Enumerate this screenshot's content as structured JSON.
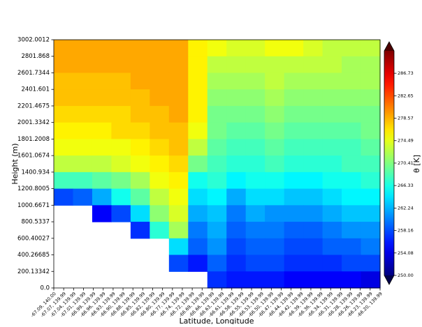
{
  "chart_data": {
    "type": "contour",
    "xlabel": "Latitude, Longitude",
    "ylabel": "Height (m)",
    "colorbar_label": "θ [K]",
    "categories": [
      "-67.09, 140.00",
      "-67.07, 139.99",
      "-67.04, 139.99",
      "-67.01, 139.99",
      "-66.99, 139.99",
      "-66.96, 139.99",
      "-66.93, 139.99",
      "-66.90, 139.99",
      "-66.88, 139.99",
      "-66.85, 139.99",
      "-66.82, 139.99",
      "-66.80, 139.99",
      "-66.77, 139.99",
      "-66.74, 139.99",
      "-66.72, 139.99",
      "-66.69, 139.99",
      "-66.66, 139.99",
      "-66.63, 139.99",
      "-66.61, 139.99",
      "-66.58, 139.99",
      "-66.55, 139.99",
      "-66.53, 139.99",
      "-66.50, 139.99",
      "-66.47, 139.99",
      "-66.44, 139.99",
      "-66.42, 139.99",
      "-66.39, 139.99",
      "-66.36, 139.99",
      "-66.34, 139.99",
      "-66.31, 139.99",
      "-66.28, 139.99",
      "-66.26, 139.99",
      "-66.23, 139.99",
      "-66.20, 139.99"
    ],
    "ylim": [
      0,
      3002.0012
    ],
    "yticks": [
      {
        "value": 0,
        "label": "0.0"
      },
      200.13342,
      400.26685,
      600.40027,
      800.5337,
      1000.6671,
      1200.8005,
      1400.934,
      1601.0674,
      1801.2008,
      2001.3342,
      2201.4675,
      2401.601,
      2601.7344,
      2801.868,
      3002.0012
    ],
    "clim": [
      250,
      290.8
    ],
    "cticks": [
      {
        "value": 250,
        "label": "250.00"
      },
      254.08,
      258.16,
      262.24,
      266.33,
      270.41,
      274.49,
      278.57,
      282.65,
      286.73
    ],
    "colormap": "jet",
    "z": [
      [
        279,
        279,
        279,
        279,
        279,
        279,
        279,
        276,
        275,
        274,
        274,
        275,
        275,
        274,
        273,
        273,
        273
      ],
      [
        279,
        279,
        279,
        279,
        279,
        279,
        279,
        276,
        273,
        273,
        273,
        273,
        273,
        273,
        273,
        272,
        272
      ],
      [
        278,
        278,
        278,
        278,
        279,
        279,
        279,
        276,
        272,
        272,
        272,
        273,
        272,
        272,
        272,
        272,
        272
      ],
      [
        278,
        278,
        278,
        278,
        278,
        279,
        279,
        276,
        271,
        271,
        271,
        272,
        271,
        271,
        271,
        271,
        271
      ],
      [
        277,
        277,
        277,
        277,
        278,
        278,
        279,
        276,
        270,
        270,
        270,
        271,
        270,
        270,
        270,
        270,
        270
      ],
      [
        276,
        276,
        276,
        277,
        277,
        278,
        278,
        275,
        270,
        269,
        269,
        270,
        269,
        269,
        269,
        269,
        270
      ],
      [
        275,
        275,
        275,
        275,
        276,
        277,
        278,
        273,
        269,
        268,
        268,
        269,
        268,
        268,
        268,
        268,
        269
      ],
      [
        273,
        273,
        273,
        274,
        275,
        276,
        277,
        270,
        268,
        267,
        267,
        268,
        267,
        267,
        267,
        268,
        268
      ],
      [
        268,
        268,
        269,
        270,
        272,
        275,
        276,
        266,
        267,
        265,
        266,
        266,
        265,
        265,
        266,
        266,
        267
      ],
      [
        258,
        259,
        262,
        266,
        269,
        273,
        275,
        264,
        265,
        262,
        264,
        264,
        263,
        263,
        264,
        265,
        265
      ],
      [
        null,
        null,
        255,
        258,
        264,
        271,
        274,
        262,
        263,
        260,
        262,
        261,
        261,
        261,
        262,
        263,
        263
      ],
      [
        null,
        null,
        null,
        null,
        257,
        267,
        272,
        260,
        262,
        259,
        260,
        260,
        259,
        259,
        260,
        261,
        261
      ],
      [
        null,
        null,
        null,
        null,
        null,
        null,
        264,
        259,
        261,
        258,
        259,
        259,
        258,
        258,
        259,
        259,
        260
      ],
      [
        null,
        null,
        null,
        null,
        null,
        null,
        258,
        256,
        259,
        257,
        258,
        258,
        257,
        257,
        257,
        258,
        258
      ],
      [
        null,
        null,
        null,
        null,
        null,
        null,
        null,
        null,
        257,
        256,
        256,
        256,
        255,
        255,
        255,
        255,
        254
      ]
    ]
  }
}
